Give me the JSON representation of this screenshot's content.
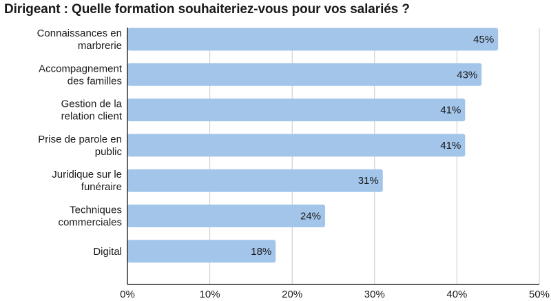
{
  "chart_data": {
    "type": "bar",
    "orientation": "horizontal",
    "title": "Dirigeant : Quelle formation souhaiteriez-vous pour vos salariés ?",
    "categories": [
      [
        "Connaissances en",
        "marbrerie"
      ],
      [
        "Accompagnement",
        "des familles"
      ],
      [
        "Gestion de la",
        "relation client"
      ],
      [
        "Prise de parole en",
        "public"
      ],
      [
        "Juridique sur le",
        "funéraire"
      ],
      [
        "Techniques",
        "commerciales"
      ],
      [
        "Digital"
      ]
    ],
    "values": [
      45,
      43,
      41,
      41,
      31,
      24,
      18
    ],
    "value_labels": [
      "45%",
      "43%",
      "41%",
      "41%",
      "31%",
      "24%",
      "18%"
    ],
    "xlim": [
      0,
      50
    ],
    "xticks": [
      0,
      10,
      20,
      30,
      40,
      50
    ],
    "xtick_labels": [
      "0%",
      "10%",
      "20%",
      "30%",
      "40%",
      "50%"
    ],
    "grid": "vertical",
    "bar_color": "#a3c5ea",
    "grid_color": "#c8c8c8",
    "axis_color": "#000000"
  }
}
